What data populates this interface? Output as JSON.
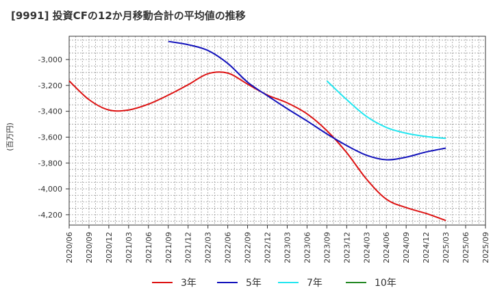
{
  "chart_data": {
    "type": "line",
    "title": "[9991]  投資CFの12か月移動合計の平均値の推移",
    "ylabel": "(百万円)",
    "xlabel": "",
    "ylim": [
      -4280,
      -2820
    ],
    "y_ticks": [
      -3000,
      -3200,
      -3400,
      -3600,
      -3800,
      -4000,
      -4200
    ],
    "y_tick_labels": [
      "-3,000",
      "-3,200",
      "-3,400",
      "-3,600",
      "-3,800",
      "-4,000",
      "-4,200"
    ],
    "x_ticks": [
      "2020/06",
      "2020/09",
      "2020/12",
      "2021/03",
      "2021/06",
      "2021/09",
      "2021/12",
      "2022/03",
      "2022/06",
      "2022/09",
      "2022/12",
      "2023/03",
      "2023/06",
      "2023/09",
      "2023/12",
      "2024/03",
      "2024/06",
      "2024/09",
      "2024/12",
      "2025/03",
      "2025/06",
      "2025/09"
    ],
    "grid": true,
    "legend_position": "bottom",
    "series": [
      {
        "name": "3年",
        "color": "#dd1111",
        "x": [
          "2020/06",
          "2020/09",
          "2020/12",
          "2021/03",
          "2021/06",
          "2021/09",
          "2021/12",
          "2022/03",
          "2022/06",
          "2022/09",
          "2022/12",
          "2023/03",
          "2023/06",
          "2023/09",
          "2023/12",
          "2024/03",
          "2024/06",
          "2024/09",
          "2024/12",
          "2025/03"
        ],
        "y": [
          -3165,
          -3310,
          -3390,
          -3390,
          -3345,
          -3275,
          -3195,
          -3110,
          -3105,
          -3190,
          -3275,
          -3335,
          -3420,
          -3550,
          -3720,
          -3925,
          -4080,
          -4145,
          -4190,
          -4245
        ]
      },
      {
        "name": "5年",
        "color": "#1111bb",
        "x": [
          "2021/09",
          "2021/12",
          "2022/03",
          "2022/06",
          "2022/09",
          "2022/12",
          "2023/03",
          "2023/06",
          "2023/09",
          "2023/12",
          "2024/03",
          "2024/06",
          "2024/09",
          "2024/12",
          "2025/03"
        ],
        "y": [
          -2860,
          -2885,
          -2930,
          -3030,
          -3175,
          -3280,
          -3380,
          -3475,
          -3575,
          -3665,
          -3740,
          -3775,
          -3755,
          -3715,
          -3685
        ]
      },
      {
        "name": "7年",
        "color": "#22e6f0",
        "x": [
          "2023/09",
          "2023/12",
          "2024/03",
          "2024/06",
          "2024/09",
          "2024/12",
          "2025/03"
        ],
        "y": [
          -3165,
          -3310,
          -3440,
          -3525,
          -3570,
          -3595,
          -3610
        ]
      },
      {
        "name": "10年",
        "color": "#228822",
        "x": [],
        "y": []
      }
    ]
  }
}
